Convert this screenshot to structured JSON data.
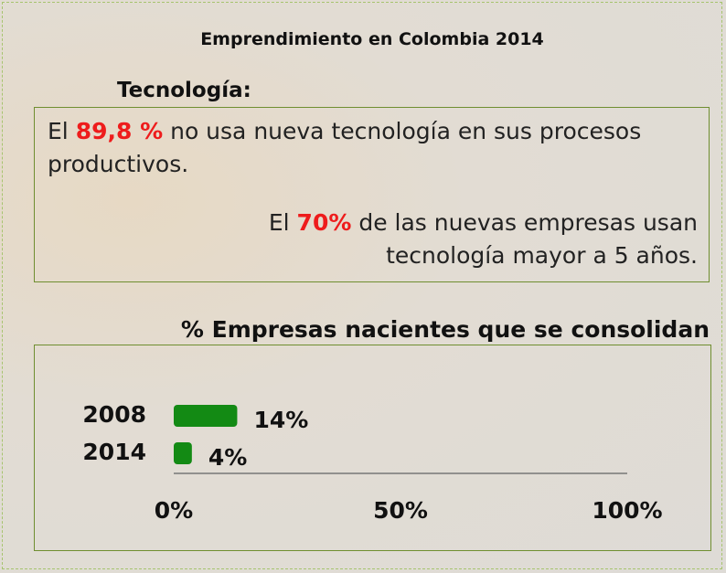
{
  "header": {
    "title": "Emprendimiento en Colombia 2014"
  },
  "technology": {
    "heading": "Tecnología:",
    "paragraphs": [
      {
        "before": "El",
        "highlight": "89,8 %",
        "after": "no usa nueva tecnología en sus procesos productivos."
      },
      {
        "before": "El",
        "highlight": "70%",
        "after": "de las nuevas empresas usan tecnología mayor a 5 años."
      }
    ]
  },
  "chart_data": {
    "type": "bar",
    "orientation": "horizontal",
    "title": "% Empresas nacientes que se consolidan",
    "categories": [
      "2008",
      "2014"
    ],
    "values": [
      14,
      4
    ],
    "value_labels": [
      "14%",
      "4%"
    ],
    "color": "#138a14",
    "xlim": [
      0,
      100
    ],
    "xticks": [
      {
        "value": 0,
        "label": "0%"
      },
      {
        "value": 50,
        "label": "50%"
      },
      {
        "value": 100,
        "label": "100%"
      }
    ]
  }
}
